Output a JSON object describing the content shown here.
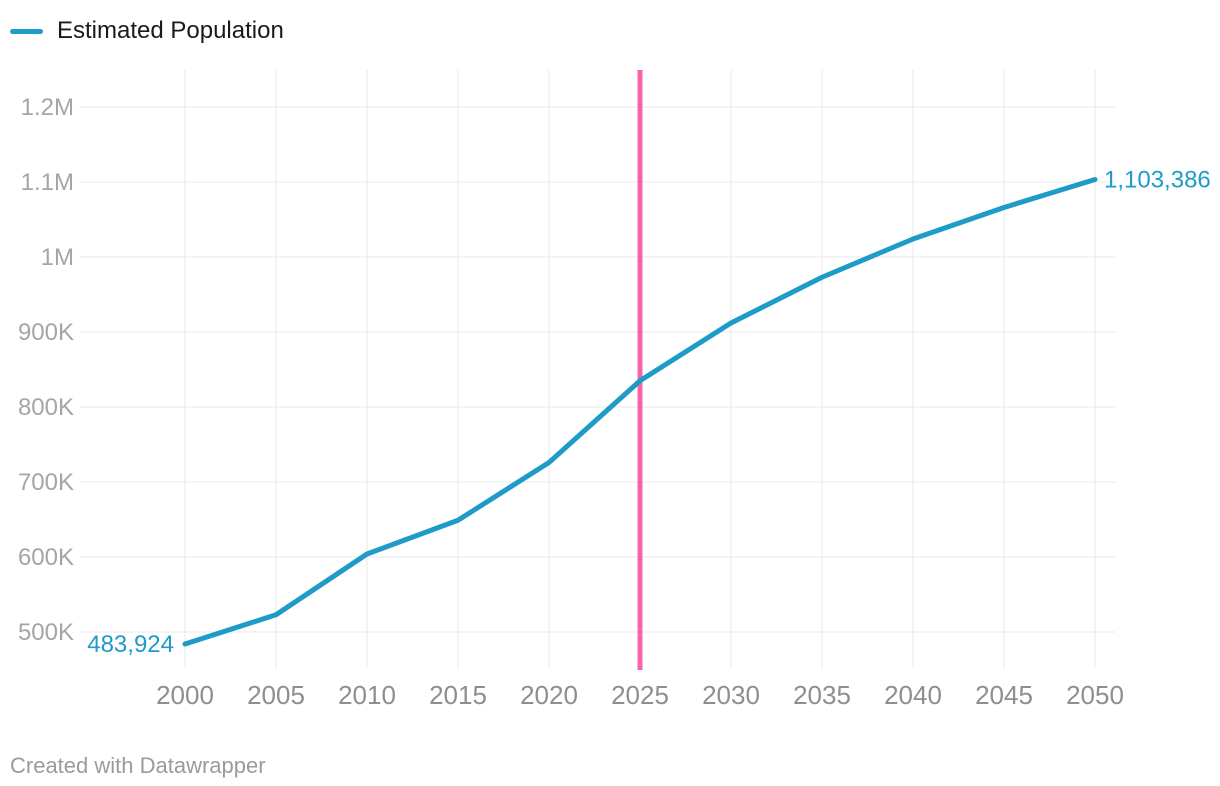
{
  "legend": {
    "items": [
      {
        "label": "Estimated Population",
        "color": "#1E9BC7"
      }
    ]
  },
  "footer": {
    "attribution": "Created with Datawrapper"
  },
  "chart_data": {
    "type": "line",
    "title": "",
    "xlabel": "",
    "ylabel": "",
    "x": [
      2000,
      2005,
      2010,
      2015,
      2020,
      2025,
      2030,
      2035,
      2040,
      2045,
      2050
    ],
    "series": [
      {
        "name": "Estimated Population",
        "color": "#1E9BC7",
        "values": [
          483924,
          523000,
          604000,
          649000,
          726000,
          835000,
          912000,
          973000,
          1024000,
          1066000,
          1103386
        ]
      }
    ],
    "point_labels": {
      "first": "483,924",
      "last": "1,103,386"
    },
    "x_tick_labels": [
      "2000",
      "2005",
      "2010",
      "2015",
      "2020",
      "2025",
      "2030",
      "2035",
      "2040",
      "2045",
      "2050"
    ],
    "y_tick_labels": [
      "500K",
      "600K",
      "700K",
      "800K",
      "900K",
      "1M",
      "1.1M",
      "1.2M"
    ],
    "y_tick_values": [
      500000,
      600000,
      700000,
      800000,
      900000,
      1000000,
      1100000,
      1200000
    ],
    "xlim": [
      1994,
      2051
    ],
    "ylim": [
      449000,
      1249000
    ],
    "grid": true,
    "legend_position": "top-left",
    "reference_line": {
      "x": 2025,
      "color": "#F765A8"
    }
  },
  "colors": {
    "series": "#1E9BC7",
    "reference_line": "#F765A8",
    "grid": "#E8E8E8",
    "x_tick_text": "#8E8E8E",
    "y_tick_text": "#A5A5A5",
    "legend_text": "#1A1A1A",
    "footer_text": "#9B9B9B",
    "background": "#FFFFFF"
  }
}
